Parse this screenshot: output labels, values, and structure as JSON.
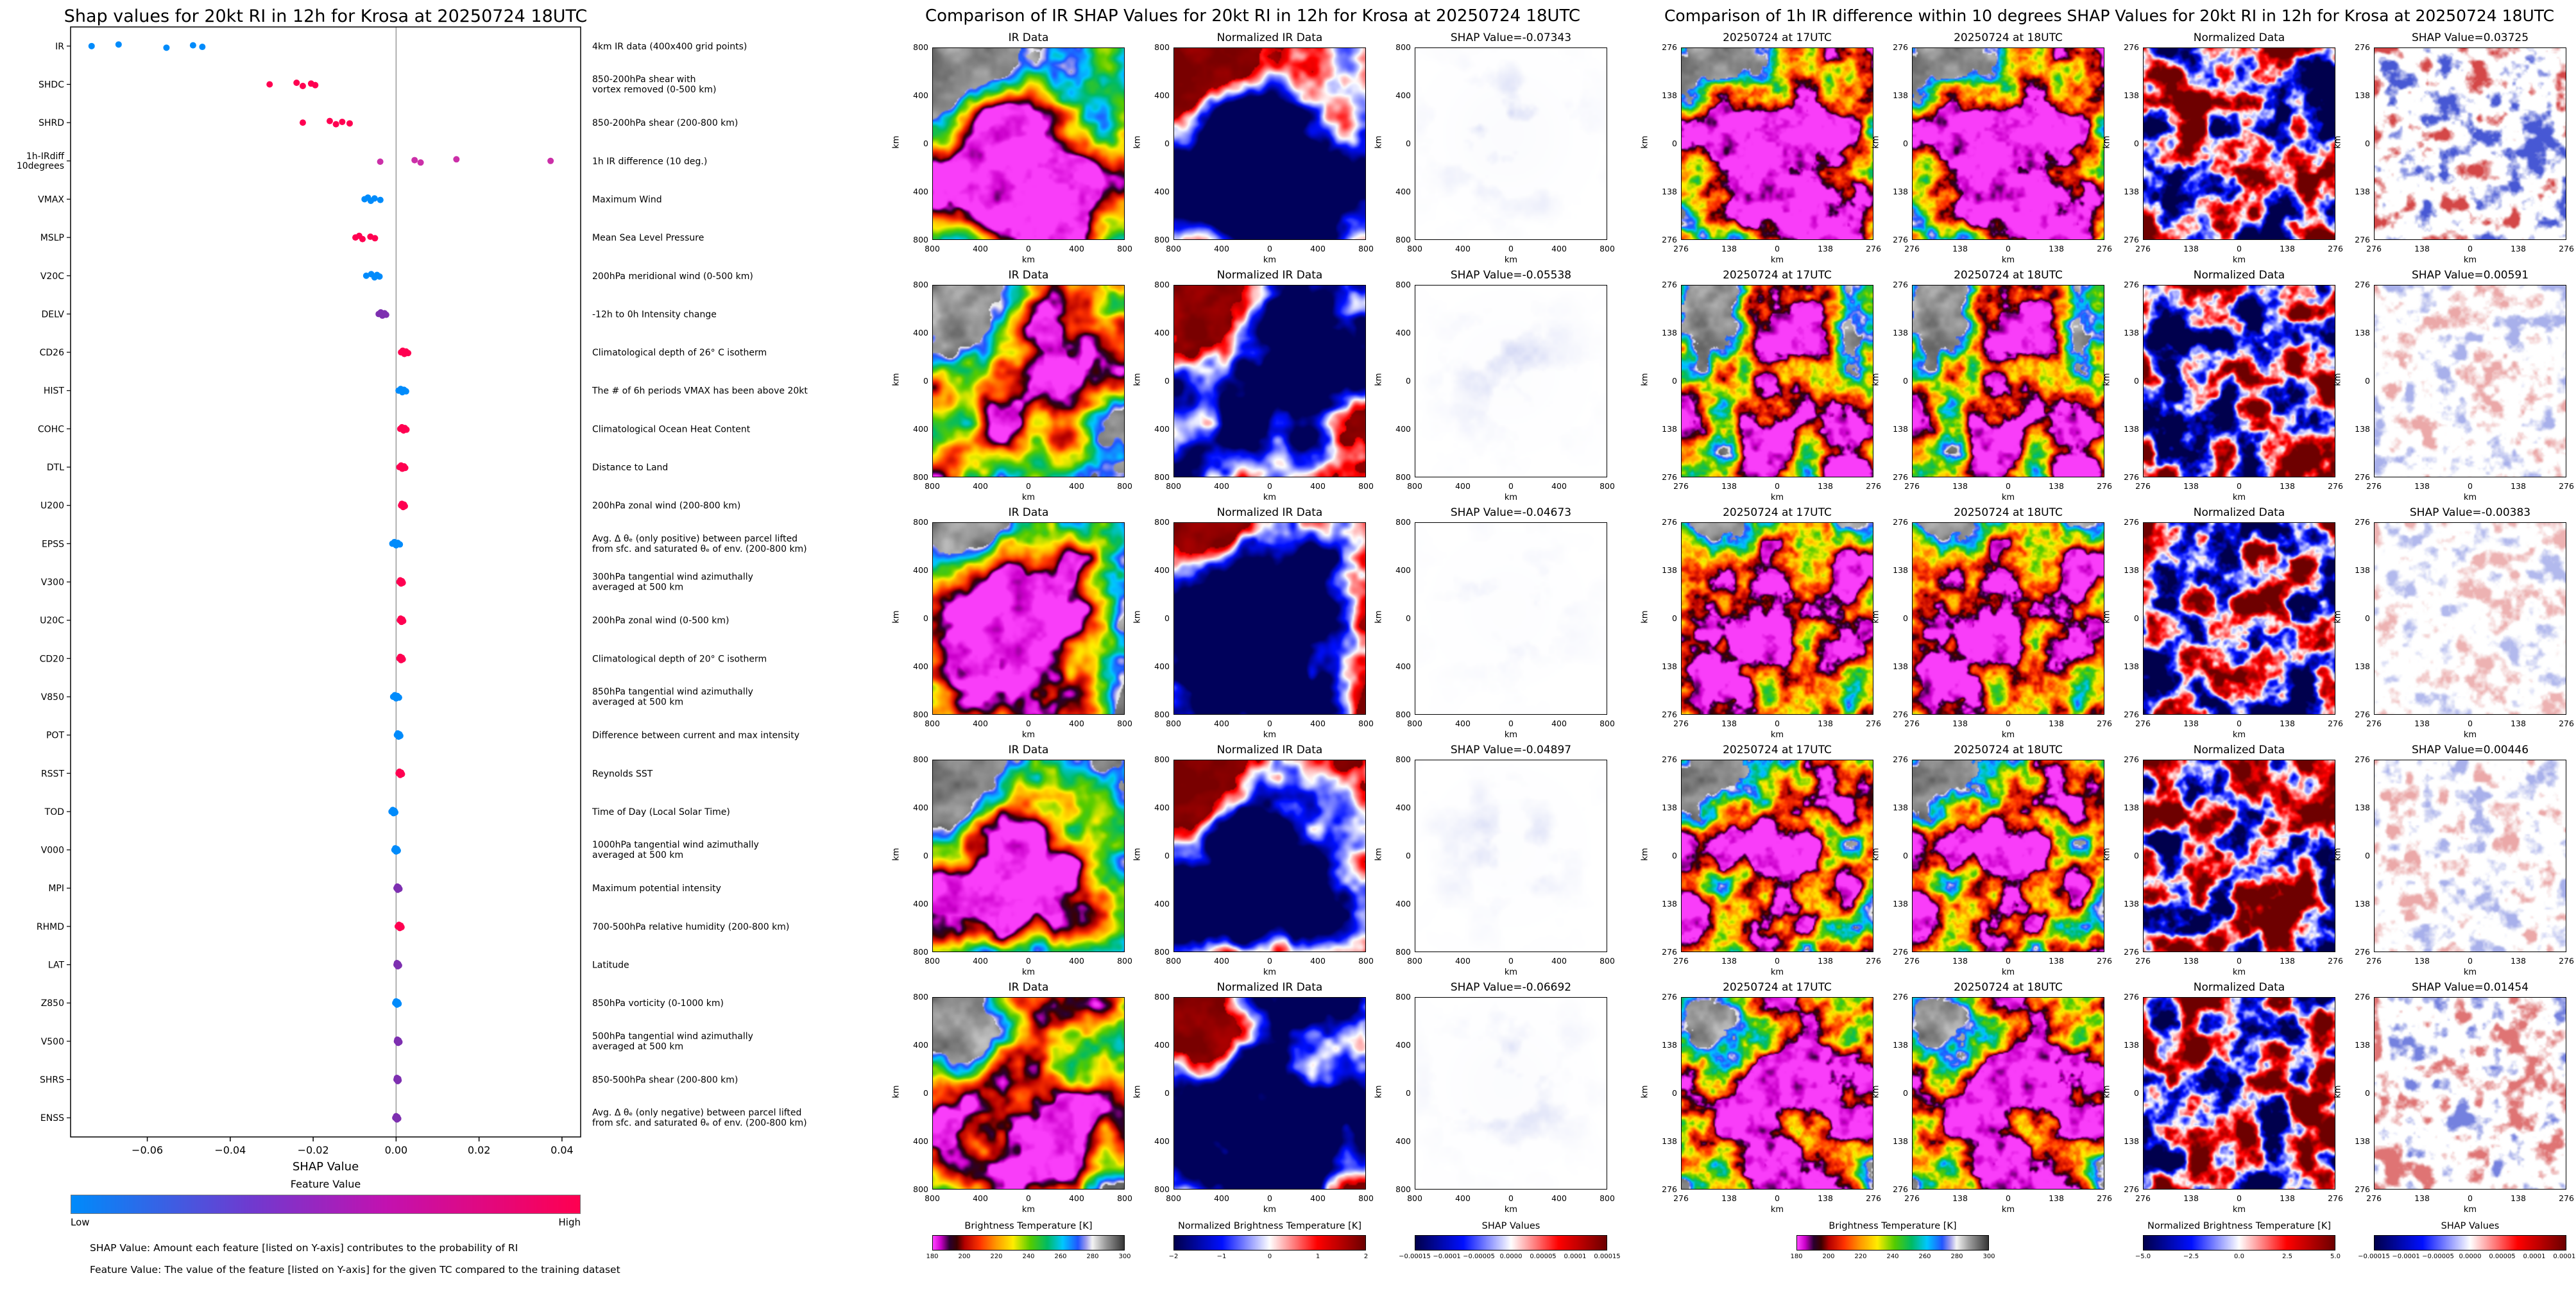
{
  "chart_data": [
    {
      "id": "shap_beeswarm",
      "type": "scatter",
      "subtype": "shap_summary",
      "title": "Shap values for 20kt RI in 12h for Krosa at 20250724 18UTC",
      "xlabel": "SHAP Value",
      "xlim": [
        -0.0785,
        0.0445
      ],
      "xticks": [
        -0.06,
        -0.04,
        -0.02,
        0,
        0.02,
        0.04
      ],
      "xtick_labels": [
        "−0.06",
        "−0.04",
        "−0.02",
        "0.00",
        "0.02",
        "0.04"
      ],
      "zero_line": true,
      "colorbar": {
        "title": "Feature Value",
        "low": "Low",
        "high": "High",
        "cmap_low": "#008bfb",
        "cmap_high": "#ff0051"
      },
      "captions": [
        "SHAP Value: Amount each feature [listed on Y-axis] contributes to the probability of RI",
        "Feature Value: The value of the feature [listed on Y-axis] for the given TC compared to the training dataset"
      ],
      "features": [
        {
          "name": "IR",
          "color": "#008bfb",
          "values": [
            -0.07343,
            -0.06692,
            -0.05538,
            -0.04897,
            -0.04673
          ],
          "desc_lines": [
            "4km IR data (400x400 grid points)"
          ]
        },
        {
          "name": "SHDC",
          "color": "#ff0051",
          "values": [
            -0.0305,
            -0.024,
            -0.0225,
            -0.0205,
            -0.0195
          ],
          "desc_lines": [
            "850-200hPa shear with",
            "vortex removed (0-500 km)"
          ]
        },
        {
          "name": "SHRD",
          "color": "#ff0051",
          "values": [
            -0.0225,
            -0.016,
            -0.0145,
            -0.013,
            -0.0112
          ],
          "desc_lines": [
            "850-200hPa shear (200-800 km)"
          ]
        },
        {
          "name": "1h-IRdiff 10degrees",
          "name_lines": [
            "1h-IRdiff",
            "10degrees"
          ],
          "color": "#cb2fa8",
          "values": [
            0.03725,
            0.01454,
            0.00591,
            0.00446,
            -0.00383
          ],
          "desc_lines": [
            "1h IR difference (10 deg.)"
          ]
        },
        {
          "name": "VMAX",
          "color": "#008bfb",
          "values": [
            -0.0076,
            -0.0068,
            -0.0061,
            -0.0052,
            -0.0038
          ],
          "desc_lines": [
            "Maximum Wind"
          ]
        },
        {
          "name": "MSLP",
          "color": "#ff0051",
          "values": [
            -0.0098,
            -0.0089,
            -0.0081,
            -0.0062,
            -0.0051
          ],
          "desc_lines": [
            "Mean Sea Level Pressure"
          ]
        },
        {
          "name": "V20C",
          "color": "#008bfb",
          "values": [
            -0.0072,
            -0.006,
            -0.0052,
            -0.0046,
            -0.004
          ],
          "desc_lines": [
            "200hPa meridional wind (0-500 km)"
          ]
        },
        {
          "name": "DELV",
          "color": "#7d2fb0",
          "values": [
            -0.0042,
            -0.0037,
            -0.0033,
            -0.0028,
            -0.0024
          ],
          "desc_lines": [
            "-12h to 0h Intensity change"
          ]
        },
        {
          "name": "CD26",
          "color": "#ff0051",
          "values": [
            0.0012,
            0.0016,
            0.002,
            0.0024,
            0.0029
          ],
          "desc_lines": [
            "Climatological depth of 26° C isotherm"
          ]
        },
        {
          "name": "HIST",
          "color": "#008bfb",
          "values": [
            0.0006,
            0.0011,
            0.0015,
            0.0019,
            0.0024
          ],
          "desc_lines": [
            "The # of 6h periods VMAX has been above 20kt"
          ]
        },
        {
          "name": "COHC",
          "color": "#ff0051",
          "values": [
            0.001,
            0.0014,
            0.0018,
            0.0021,
            0.0025
          ],
          "desc_lines": [
            "Climatological Ocean Heat Content"
          ]
        },
        {
          "name": "DTL",
          "color": "#ff0051",
          "values": [
            0.0008,
            0.0012,
            0.0015,
            0.0019,
            0.0022
          ],
          "desc_lines": [
            "Distance to Land"
          ]
        },
        {
          "name": "U200",
          "color": "#ff0051",
          "values": [
            0.0012,
            0.0014,
            0.0017,
            0.0019,
            0.0021
          ],
          "desc_lines": [
            "200hPa zonal wind (200-800 km)"
          ]
        },
        {
          "name": "EPSS",
          "color": "#008bfb",
          "values": [
            -0.0009,
            -0.0004,
            0,
            0.0004,
            0.0009
          ],
          "desc_lines": [
            "Avg. Δ θₑ (only positive) between parcel lifted",
            "from sfc. and saturated θₑ of env. (200-800 km)"
          ]
        },
        {
          "name": "V300",
          "color": "#ff0051",
          "values": [
            0.0008,
            0.001,
            0.0012,
            0.0014,
            0.0016
          ],
          "desc_lines": [
            "300hPa tangential wind azimuthally",
            "averaged at 500 km"
          ]
        },
        {
          "name": "U20C",
          "color": "#ff0051",
          "values": [
            0.0009,
            0.0011,
            0.0013,
            0.0015,
            0.0017
          ],
          "desc_lines": [
            "200hPa zonal wind (0-500 km)"
          ]
        },
        {
          "name": "CD20",
          "color": "#ff0051",
          "values": [
            0.0008,
            0.001,
            0.0012,
            0.0014,
            0.0016
          ],
          "desc_lines": [
            "Climatological depth of 20° C isotherm"
          ]
        },
        {
          "name": "V850",
          "color": "#008bfb",
          "values": [
            -0.0007,
            -0.0003,
            0,
            0.0003,
            0.0007
          ],
          "desc_lines": [
            "850hPa tangential wind azimuthally",
            "averaged at 500 km"
          ]
        },
        {
          "name": "POT",
          "color": "#008bfb",
          "values": [
            0.0002,
            0.0004,
            0.0006,
            0.0008,
            0.001
          ],
          "desc_lines": [
            "Difference between current and max intensity"
          ]
        },
        {
          "name": "RSST",
          "color": "#ff0051",
          "values": [
            0.0006,
            0.0008,
            0.001,
            0.0012,
            0.0014
          ],
          "desc_lines": [
            "Reynolds SST"
          ]
        },
        {
          "name": "TOD",
          "color": "#008bfb",
          "values": [
            -0.0011,
            -0.0008,
            -0.0006,
            -0.0004,
            -0.0002
          ],
          "desc_lines": [
            "Time of Day (Local Solar Time)"
          ]
        },
        {
          "name": "V000",
          "color": "#008bfb",
          "values": [
            -0.0004,
            -0.0002,
            0,
            0.0002,
            0.0004
          ],
          "desc_lines": [
            "1000hPa tangential wind azimuthally",
            "averaged at 500 km"
          ]
        },
        {
          "name": "MPI",
          "color": "#7d2fb0",
          "values": [
            0.0001,
            0.0003,
            0.0004,
            0.0006,
            0.0008
          ],
          "desc_lines": [
            "Maximum potential intensity"
          ]
        },
        {
          "name": "RHMD",
          "color": "#ff0051",
          "values": [
            0.0004,
            0.0007,
            0.0009,
            0.0011,
            0.0013
          ],
          "desc_lines": [
            "700-500hPa relative humidity (200-800 km)"
          ]
        },
        {
          "name": "LAT",
          "color": "#7d2fb0",
          "values": [
            0.0001,
            0.0002,
            0.0004,
            0.0005,
            0.0007
          ],
          "desc_lines": [
            "Latitude"
          ]
        },
        {
          "name": "Z850",
          "color": "#008bfb",
          "values": [
            -0.0002,
            0,
            0.0002,
            0.0004,
            0.0006
          ],
          "desc_lines": [
            "850hPa vorticity (0-1000 km)"
          ]
        },
        {
          "name": "V500",
          "color": "#7d2fb0",
          "values": [
            0.0002,
            0.0003,
            0.0005,
            0.0006,
            0.0008
          ],
          "desc_lines": [
            "500hPa tangential wind azimuthally",
            "averaged at 500 km"
          ]
        },
        {
          "name": "SHRS",
          "color": "#7d2fb0",
          "values": [
            0.0001,
            0.0002,
            0.0004,
            0.0005,
            0.0006
          ],
          "desc_lines": [
            "850-500hPa shear (200-800 km)"
          ]
        },
        {
          "name": "ENSS",
          "color": "#7d2fb0",
          "values": [
            -0.0002,
            0,
            0.0002,
            0.0003,
            0.0005
          ],
          "desc_lines": [
            "Avg. Δ θₑ (only negative) between parcel lifted",
            "from sfc. and saturated θₑ of env. (200-800 km)"
          ]
        }
      ]
    },
    {
      "id": "ir_shap_grid",
      "type": "heatmap",
      "title": "Comparison of IR SHAP Values for 20kt RI in 12h for Krosa at 20250724 18UTC",
      "col_titles": [
        "IR Data",
        "Normalized IR Data"
      ],
      "shap_titles": [
        "SHAP Value=-0.07343",
        "SHAP Value=-0.05538",
        "SHAP Value=-0.04673",
        "SHAP Value=-0.04897",
        "SHAP Value=-0.06692"
      ],
      "row_shap_values": [
        -0.07343,
        -0.05538,
        -0.04673,
        -0.04897,
        -0.06692
      ],
      "axis_label": "km",
      "axis_tick_labels": [
        "800",
        "400",
        "0",
        "400",
        "800"
      ],
      "axis_range_km": [
        -800,
        800
      ],
      "colorbars": [
        {
          "title": "Brightness Temperature [K]",
          "tick_labels": [
            "180",
            "200",
            "220",
            "240",
            "260",
            "280",
            "300"
          ],
          "cmap": "ir"
        },
        {
          "title": "Normalized Brightness Temperature [K]",
          "tick_labels": [
            "−2",
            "−1",
            "0",
            "1",
            "2"
          ],
          "cmap": "seismic"
        },
        {
          "title": "SHAP Values",
          "tick_labels": [
            "−0.00015",
            "−0.0001",
            "−0.00005",
            "0.0000",
            "0.00005",
            "0.0001",
            "0.00015"
          ],
          "cmap": "seismic"
        }
      ]
    },
    {
      "id": "irdiff_shap_grid",
      "type": "heatmap",
      "title": "Comparison of 1h IR difference within 10 degrees SHAP Values for 20kt RI in 12h for Krosa at 20250724 18UTC",
      "col_titles": [
        "20250724 at 17UTC",
        "20250724 at 18UTC",
        "Normalized Data"
      ],
      "shap_titles": [
        "SHAP Value=0.03725",
        "SHAP Value=0.00591",
        "SHAP Value=-0.00383",
        "SHAP Value=0.00446",
        "SHAP Value=0.01454"
      ],
      "row_shap_values": [
        0.03725,
        0.00591,
        -0.00383,
        0.00446,
        0.01454
      ],
      "axis_label": "km",
      "axis_tick_labels": [
        "276",
        "138",
        "0",
        "138",
        "276"
      ],
      "axis_range_km": [
        -276,
        276
      ],
      "colorbars": [
        {
          "title": "Brightness Temperature [K]",
          "tick_labels": [
            "180",
            "200",
            "220",
            "240",
            "260",
            "280",
            "300"
          ],
          "cmap": "ir"
        },
        {
          "title": "Normalized Brightness Temperature [K]",
          "tick_labels": [
            "−5.0",
            "−2.5",
            "0.0",
            "2.5",
            "5.0"
          ],
          "cmap": "seismic"
        },
        {
          "title": "SHAP Values",
          "tick_labels": [
            "−0.00015",
            "−0.0001",
            "−0.00005",
            "0.0000",
            "0.00005",
            "0.0001",
            "0.00015"
          ],
          "cmap": "seismic"
        }
      ]
    }
  ]
}
